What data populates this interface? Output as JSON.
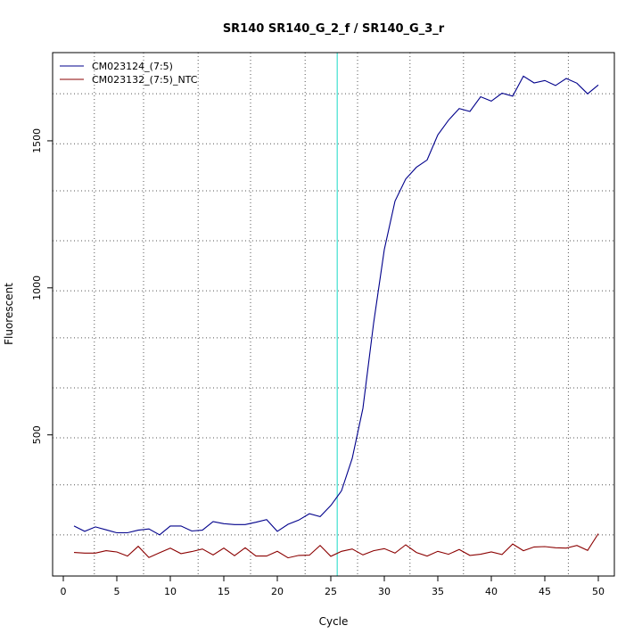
{
  "chart_data": {
    "type": "line",
    "title": "SR140  SR140_G_2_f / SR140_G_3_r",
    "xlabel": "Cycle",
    "ylabel": "Fluorescent",
    "xlim": [
      -1,
      51.5
    ],
    "ylim": [
      20,
      1800
    ],
    "x_ticks": [
      0,
      5,
      10,
      15,
      20,
      25,
      30,
      35,
      40,
      45,
      50
    ],
    "y_ticks": [
      500,
      1000,
      1500
    ],
    "x_grid": [
      2.9,
      7.5,
      12.6,
      17.5,
      22.6,
      27.5,
      32.4,
      37.4,
      42.2,
      47.2
    ],
    "y_grid": [
      160,
      330,
      490,
      660,
      830,
      990,
      1160,
      1330,
      1490,
      1660
    ],
    "grid": true,
    "legend_position": "top-left",
    "threshold_cycle": 25.6,
    "threshold_color": "#40e0d0",
    "x": [
      1,
      2,
      3,
      4,
      5,
      6,
      7,
      8,
      9,
      10,
      11,
      12,
      13,
      14,
      15,
      16,
      17,
      18,
      19,
      20,
      21,
      22,
      23,
      24,
      25,
      26,
      27,
      28,
      29,
      30,
      31,
      32,
      33,
      34,
      35,
      36,
      37,
      38,
      39,
      40,
      41,
      42,
      43,
      44,
      45,
      46,
      47,
      48,
      49,
      50
    ],
    "series": [
      {
        "name": "CM023124_(7:5)",
        "color": "#00008b",
        "values": [
          190,
          172,
          187,
          177,
          167,
          167,
          176,
          180,
          160,
          190,
          190,
          173,
          176,
          205,
          198,
          195,
          195,
          203,
          212,
          172,
          196,
          210,
          232,
          222,
          260,
          310,
          420,
          590,
          880,
          1130,
          1295,
          1370,
          1410,
          1435,
          1520,
          1570,
          1610,
          1600,
          1650,
          1635,
          1662,
          1652,
          1720,
          1697,
          1705,
          1688,
          1712,
          1696,
          1660,
          1690
        ]
      },
      {
        "name": "CM023132_(7:5)_NTC",
        "color": "#8b0000",
        "values": [
          100,
          98,
          98,
          106,
          102,
          88,
          121,
          83,
          99,
          115,
          96,
          103,
          112,
          92,
          115,
          89,
          116,
          88,
          88,
          104,
          82,
          90,
          91,
          124,
          87,
          104,
          112,
          92,
          106,
          113,
          98,
          126,
          100,
          88,
          104,
          94,
          110,
          90,
          94,
          102,
          93,
          129,
          106,
          119,
          120,
          116,
          115,
          124,
          107,
          164
        ]
      }
    ]
  }
}
